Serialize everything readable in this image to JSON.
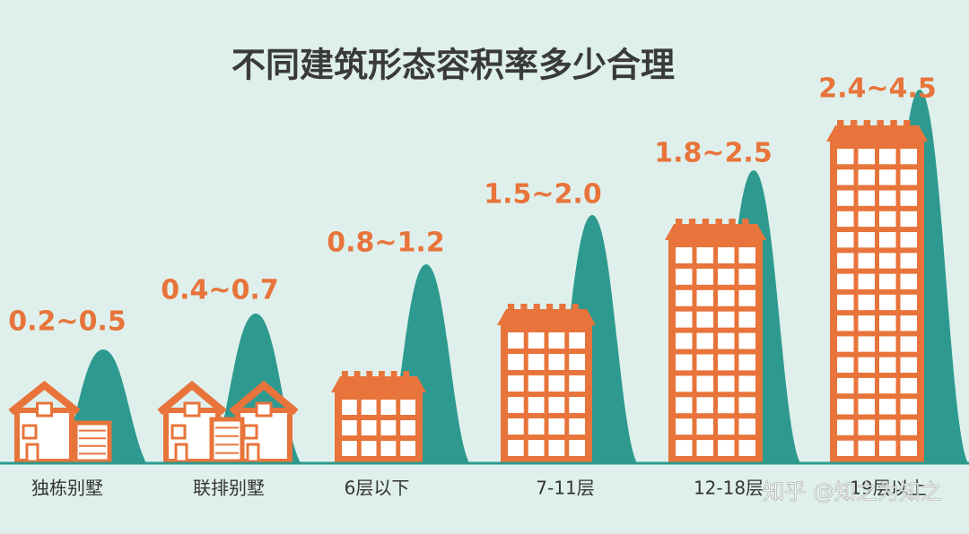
{
  "title": "不同建筑形态容积率多少合理",
  "items": [
    {
      "label": "独栋别墅",
      "range": "0.2~0.5"
    },
    {
      "label": "联排别墅",
      "range": "0.4~0.7"
    },
    {
      "label": "6层以下",
      "range": "0.8~1.2"
    },
    {
      "label": "7-11层",
      "range": "1.5~2.0"
    },
    {
      "label": "12-18层",
      "range": "1.8~2.5"
    },
    {
      "label": "19层以上",
      "range": "2.4~4.5"
    }
  ],
  "watermark": "知乎 @知之为知之"
}
